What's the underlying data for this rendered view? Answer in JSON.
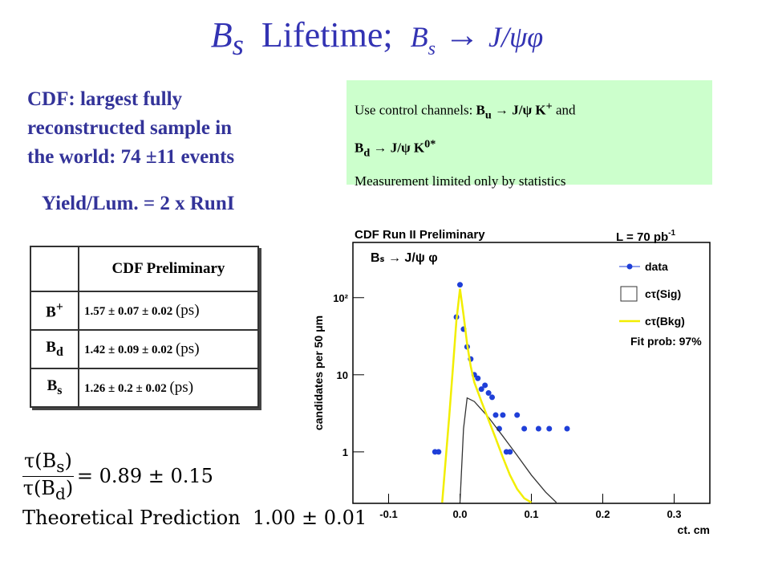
{
  "title": {
    "parts": [
      "B",
      "s",
      "Lifetime;",
      "B",
      "s",
      "→",
      "J/ψφ"
    ]
  },
  "summary": {
    "lines": [
      "CDF: largest fully",
      "reconstructed sample in",
      "the world: 74 ±11 events"
    ],
    "yield": "Yield/Lum. = 2 x RunI"
  },
  "control_box": {
    "lines": [
      [
        "Use control channels: ",
        "B",
        "u",
        " → J/ψ K",
        "+",
        " and"
      ],
      [
        "B",
        "d",
        " → J/ψ K",
        "0*"
      ],
      [
        "Measurement limited only by statistics"
      ]
    ]
  },
  "table": {
    "header": "CDF Preliminary",
    "rows": [
      {
        "symbol": "B",
        "mark": "+",
        "value": "1.57 ± 0.07 ± 0.02",
        "unit": "(ps)"
      },
      {
        "symbol": "B",
        "mark": "d",
        "value": "1.42 ± 0.09 ± 0.02",
        "unit": "(ps)"
      },
      {
        "symbol": "B",
        "mark": "s",
        "value": "1.26 ± 0.2 ± 0.02",
        "unit": "(ps)"
      }
    ]
  },
  "ratio": {
    "numerator": [
      "τ(B",
      "s",
      ")"
    ],
    "denominator": [
      "τ(B",
      "d",
      ")"
    ],
    "result": "= 0.89 ± 0.15",
    "theory_label": "Theoretical Prediction",
    "theory_value": "1.00 ± 0.01"
  },
  "plot": {
    "type": "scatter",
    "title": "CDF Run II Preliminary",
    "luminosity": [
      "L = 70 pb",
      "-1"
    ],
    "annotation": "Bₛ → J/ψ φ",
    "fit_prob": "Fit prob: 97%",
    "xlabel": "ct, cm",
    "ylabel": "candidates per 50  μm",
    "log_y": true,
    "xlim": [
      -0.15,
      0.35
    ],
    "ylim": [
      0.215,
      520
    ],
    "xticks": [
      -0.1,
      {
        "value": 0,
        "label": "0.0"
      },
      0.1,
      0.2,
      0.3
    ],
    "yticks": [
      1,
      10,
      {
        "value": 100,
        "label": "10²"
      }
    ],
    "series": [
      {
        "name": "data",
        "color": "#1f3fd8",
        "x": [
          -0.035,
          -0.03,
          -0.005,
          0,
          0.005,
          0.01,
          0.015,
          0.02,
          0.025,
          0.03,
          0.035,
          0.04,
          0.045,
          0.05,
          0.055,
          0.06,
          0.065,
          0.07,
          0.08,
          0.09,
          0.11,
          0.125,
          0.15
        ],
        "values": [
          1,
          1,
          56,
          147,
          39,
          23,
          16,
          10,
          9,
          6.5,
          7.3,
          5.8,
          5.1,
          3,
          2,
          3,
          1,
          1,
          3,
          2,
          2,
          2,
          2
        ]
      },
      {
        "name": "cτ(Sig)",
        "color": "#333333",
        "x": [
          0,
          0.005,
          0.01,
          0.02,
          0.04,
          0.06,
          0.08,
          0.1,
          0.12,
          0.135
        ],
        "values": [
          0.22,
          2,
          5,
          4.5,
          2.8,
          1.6,
          0.9,
          0.5,
          0.3,
          0.22
        ]
      },
      {
        "name": "cτ(Bkg)",
        "color": "#f2ee00",
        "x": [
          -0.025,
          -0.02,
          -0.015,
          -0.01,
          -0.005,
          0,
          0.005,
          0.01,
          0.015,
          0.02,
          0.03,
          0.04,
          0.05,
          0.06,
          0.07,
          0.08,
          0.09,
          0.1
        ],
        "values": [
          0.22,
          0.8,
          3,
          12,
          50,
          130,
          60,
          25,
          13,
          8,
          4.5,
          2.6,
          1.5,
          0.85,
          0.5,
          0.33,
          0.25,
          0.22
        ]
      }
    ]
  }
}
